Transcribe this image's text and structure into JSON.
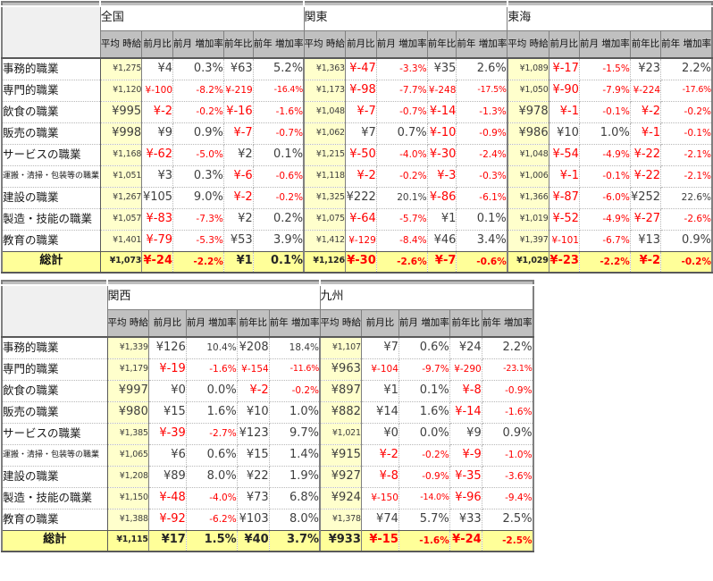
{
  "columns": [
    {
      "id": "wage",
      "label": "平均\n時給"
    },
    {
      "id": "mom_diff",
      "label": "前月比"
    },
    {
      "id": "mom_rate",
      "label": "前月\n増加率"
    },
    {
      "id": "yoy_diff",
      "label": "前年比"
    },
    {
      "id": "yoy_rate",
      "label": "前年\n増加率"
    }
  ],
  "occupations": [
    "事務的職業",
    "専門的職業",
    "飲食の職業",
    "販売の職業",
    "サービスの職業",
    "運搬・清掃・包装等の職業",
    "建設の職業",
    "製造・技能の職業",
    "教育の職業"
  ],
  "total_label": "総計",
  "colors": {
    "header_bg": "#C0C0C0",
    "wage_column_bg": "#FFFFCC",
    "total_row_bg": "#FFFF99",
    "negative_text": "#FF0000",
    "positive_text": "#3F3F3F",
    "strip_bg": "#BFBFBF"
  },
  "tables": [
    {
      "regions": [
        {
          "name": "全国",
          "rows": [
            [
              "¥1,275",
              "¥4",
              "0.3%",
              "¥63",
              "5.2%"
            ],
            [
              "¥1,120",
              "¥-100",
              "-8.2%",
              "¥-219",
              "-16.4%"
            ],
            [
              "¥995",
              "¥-2",
              "-0.2%",
              "¥-16",
              "-1.6%"
            ],
            [
              "¥998",
              "¥9",
              "0.9%",
              "¥-7",
              "-0.7%"
            ],
            [
              "¥1,168",
              "¥-62",
              "-5.0%",
              "¥2",
              "0.1%"
            ],
            [
              "¥1,051",
              "¥3",
              "0.3%",
              "¥-6",
              "-0.6%"
            ],
            [
              "¥1,267",
              "¥105",
              "9.0%",
              "¥-2",
              "-0.2%"
            ],
            [
              "¥1,057",
              "¥-83",
              "-7.3%",
              "¥2",
              "0.2%"
            ],
            [
              "¥1,401",
              "¥-79",
              "-5.3%",
              "¥53",
              "3.9%"
            ]
          ],
          "total": [
            "¥1,073",
            "¥-24",
            "-2.2%",
            "¥1",
            "0.1%"
          ]
        },
        {
          "name": "関東",
          "rows": [
            [
              "¥1,363",
              "¥-47",
              "-3.3%",
              "¥35",
              "2.6%"
            ],
            [
              "¥1,173",
              "¥-98",
              "-7.7%",
              "¥-248",
              "-17.5%"
            ],
            [
              "¥1,048",
              "¥-7",
              "-0.7%",
              "¥-14",
              "-1.3%"
            ],
            [
              "¥1,062",
              "¥7",
              "0.7%",
              "¥-10",
              "-0.9%"
            ],
            [
              "¥1,215",
              "¥-50",
              "-4.0%",
              "¥-30",
              "-2.4%"
            ],
            [
              "¥1,118",
              "¥-2",
              "-0.2%",
              "¥-3",
              "-0.3%"
            ],
            [
              "¥1,325",
              "¥222",
              "20.1%",
              "¥-86",
              "-6.1%"
            ],
            [
              "¥1,075",
              "¥-64",
              "-5.7%",
              "¥1",
              "0.1%"
            ],
            [
              "¥1,412",
              "¥-129",
              "-8.4%",
              "¥46",
              "3.4%"
            ]
          ],
          "total": [
            "¥1,126",
            "¥-30",
            "-2.6%",
            "¥-7",
            "-0.6%"
          ]
        },
        {
          "name": "東海",
          "rows": [
            [
              "¥1,089",
              "¥-17",
              "-1.5%",
              "¥23",
              "2.2%"
            ],
            [
              "¥1,050",
              "¥-90",
              "-7.9%",
              "¥-224",
              "-17.6%"
            ],
            [
              "¥978",
              "¥-1",
              "-0.1%",
              "¥-2",
              "-0.2%"
            ],
            [
              "¥986",
              "¥10",
              "1.0%",
              "¥-1",
              "-0.1%"
            ],
            [
              "¥1,048",
              "¥-54",
              "-4.9%",
              "¥-22",
              "-2.1%"
            ],
            [
              "¥1,006",
              "¥-1",
              "-0.1%",
              "¥-22",
              "-2.1%"
            ],
            [
              "¥1,366",
              "¥-87",
              "-6.0%",
              "¥252",
              "22.6%"
            ],
            [
              "¥1,019",
              "¥-52",
              "-4.9%",
              "¥-27",
              "-2.6%"
            ],
            [
              "¥1,397",
              "¥-101",
              "-6.7%",
              "¥13",
              "0.9%"
            ]
          ],
          "total": [
            "¥1,029",
            "¥-23",
            "-2.2%",
            "¥-2",
            "-0.2%"
          ]
        }
      ]
    },
    {
      "regions": [
        {
          "name": "関西",
          "rows": [
            [
              "¥1,339",
              "¥126",
              "10.4%",
              "¥208",
              "18.4%"
            ],
            [
              "¥1,179",
              "¥-19",
              "-1.6%",
              "¥-154",
              "-11.6%"
            ],
            [
              "¥997",
              "¥0",
              "0.0%",
              "¥-2",
              "-0.2%"
            ],
            [
              "¥980",
              "¥15",
              "1.6%",
              "¥10",
              "1.0%"
            ],
            [
              "¥1,385",
              "¥-39",
              "-2.7%",
              "¥123",
              "9.7%"
            ],
            [
              "¥1,065",
              "¥6",
              "0.6%",
              "¥15",
              "1.4%"
            ],
            [
              "¥1,208",
              "¥89",
              "8.0%",
              "¥22",
              "1.9%"
            ],
            [
              "¥1,150",
              "¥-48",
              "-4.0%",
              "¥73",
              "6.8%"
            ],
            [
              "¥1,388",
              "¥-92",
              "-6.2%",
              "¥103",
              "8.0%"
            ]
          ],
          "total": [
            "¥1,115",
            "¥17",
            "1.5%",
            "¥40",
            "3.7%"
          ]
        },
        {
          "name": "九州",
          "rows": [
            [
              "¥1,107",
              "¥7",
              "0.6%",
              "¥24",
              "2.2%"
            ],
            [
              "¥963",
              "¥-104",
              "-9.7%",
              "¥-290",
              "-23.1%"
            ],
            [
              "¥897",
              "¥1",
              "0.1%",
              "¥-8",
              "-0.9%"
            ],
            [
              "¥882",
              "¥14",
              "1.6%",
              "¥-14",
              "-1.6%"
            ],
            [
              "¥1,021",
              "¥0",
              "0.0%",
              "¥9",
              "0.9%"
            ],
            [
              "¥915",
              "¥-2",
              "-0.2%",
              "¥-9",
              "-1.0%"
            ],
            [
              "¥927",
              "¥-8",
              "-0.9%",
              "¥-35",
              "-3.6%"
            ],
            [
              "¥924",
              "¥-150",
              "-14.0%",
              "¥-96",
              "-9.4%"
            ],
            [
              "¥1,378",
              "¥74",
              "5.7%",
              "¥33",
              "2.5%"
            ]
          ],
          "total": [
            "¥933",
            "¥-15",
            "-1.6%",
            "¥-24",
            "-2.5%"
          ]
        }
      ]
    }
  ]
}
